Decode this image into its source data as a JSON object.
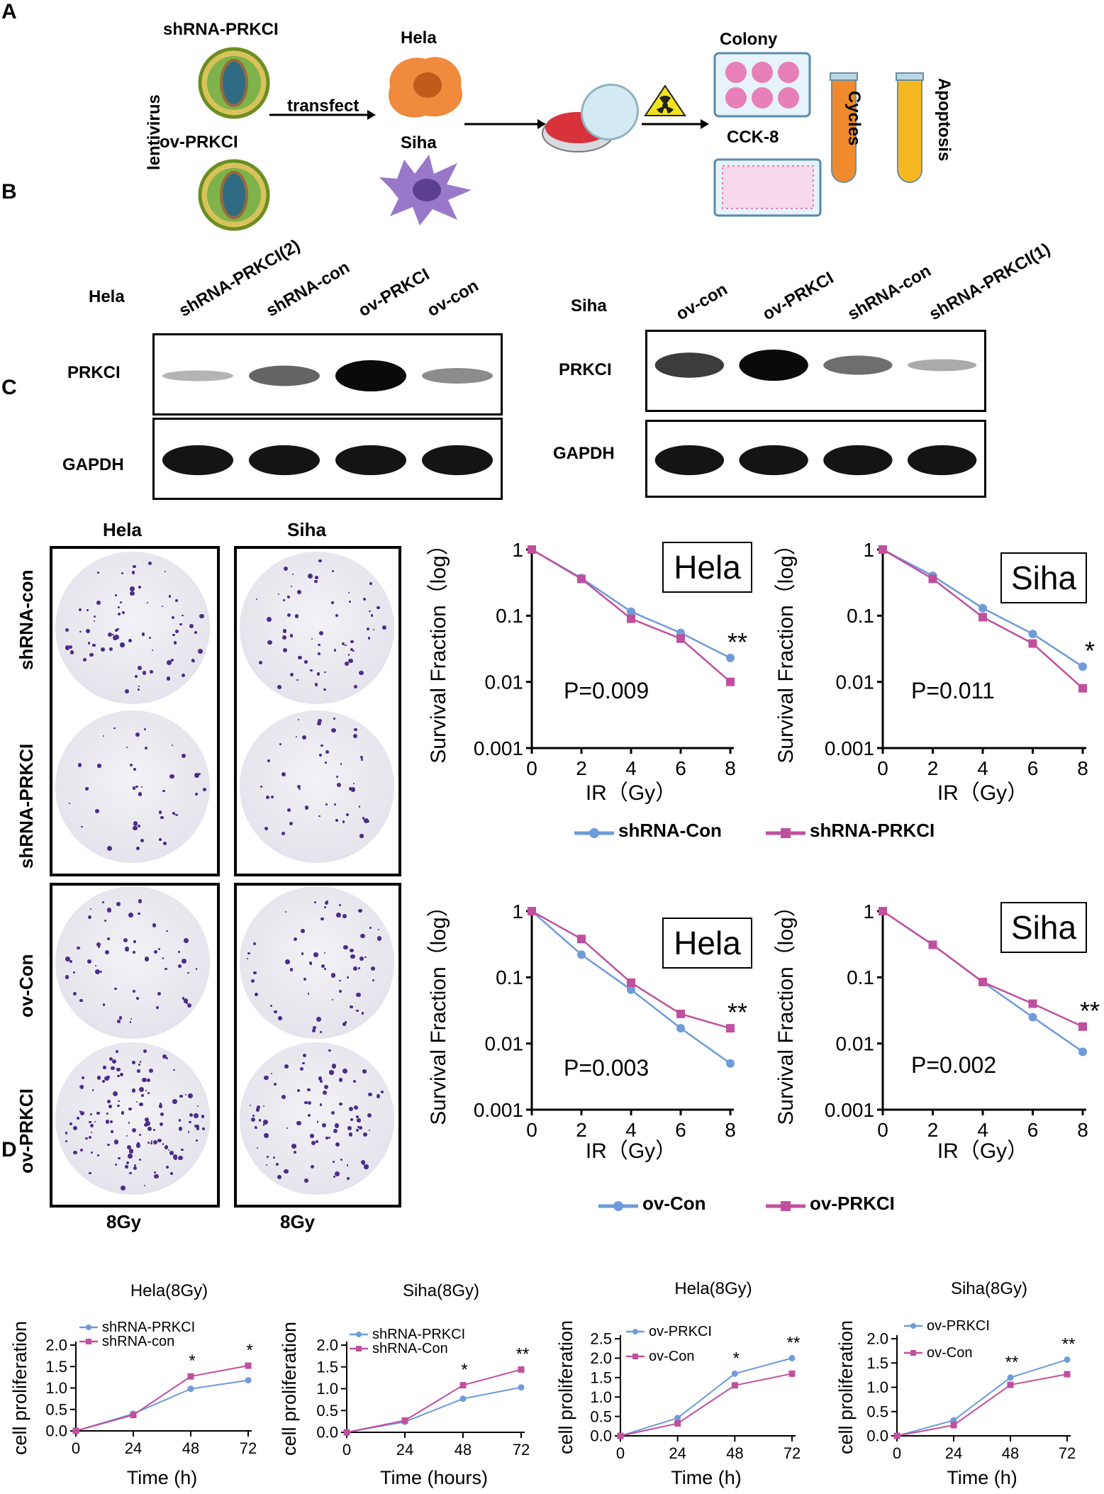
{
  "panels": {
    "a": "A",
    "b": "B",
    "c": "C",
    "d": "D"
  },
  "panelA": {
    "construct1": "shRNA-PRKCI",
    "construct2": "ov-PRKCI",
    "vector": "lentivirus",
    "action": "transfect",
    "cell1": "Hela",
    "cell2": "Siha",
    "assay_colony": "Colony",
    "assay_cck8": "CCK-8",
    "assay_cycles": "Cycles",
    "assay_apoptosis": "Apoptosis"
  },
  "panelB": {
    "hela": {
      "cell": "Hela",
      "lanes": [
        "shRNA-PRKCI(2)",
        "shRNA-con",
        "ov-PRKCI",
        "ov-con"
      ],
      "row1": "PRKCI",
      "row2": "GAPDH",
      "prkci_levels": [
        0.15,
        0.55,
        1.0,
        0.35
      ]
    },
    "siha": {
      "cell": "Siha",
      "lanes": [
        "ov-con",
        "ov-PRKCI",
        "shRNA-con",
        "shRNA-PRKCI(1)"
      ],
      "row1": "PRKCI",
      "row2": "GAPDH",
      "prkci_levels": [
        0.75,
        1.0,
        0.5,
        0.2
      ]
    }
  },
  "panelC": {
    "col1": "Hela",
    "col2": "Siha",
    "row1": "shRNA-con",
    "row2": "shRNA-PRKCI",
    "row3": "ov-Con",
    "row4": "ov-PRKCI",
    "dose1": "8Gy",
    "dose2": "8Gy",
    "legend_top": [
      "shRNA-Con",
      "shRNA-PRKCI"
    ],
    "legend_bottom": [
      "ov-Con",
      "ov-PRKCI"
    ]
  },
  "colors": {
    "blue": "#6f9bd8",
    "pink": "#c0509e"
  },
  "chart_data": [
    {
      "type": "line",
      "title": "Hela",
      "xlabel": "IR（Gy）",
      "ylabel": "Survival Fraction（log）",
      "x": [
        0,
        2,
        4,
        6,
        8
      ],
      "yscale": "log",
      "ylim": [
        0.001,
        1
      ],
      "yticks": [
        "0.001",
        "0.01",
        "0.1",
        "1"
      ],
      "series": [
        {
          "name": "shRNA-Con",
          "values": [
            1,
            0.37,
            0.115,
            0.055,
            0.023
          ]
        },
        {
          "name": "shRNA-PRKCI",
          "values": [
            1,
            0.36,
            0.09,
            0.045,
            0.01
          ]
        }
      ],
      "annotation": "P=0.009",
      "significance": "**"
    },
    {
      "type": "line",
      "title": "Siha",
      "xlabel": "IR（Gy）",
      "ylabel": "Survival Fraction（log）",
      "x": [
        0,
        2,
        4,
        6,
        8
      ],
      "yscale": "log",
      "ylim": [
        0.001,
        1
      ],
      "yticks": [
        "0.001",
        "0.01",
        "0.1",
        "1"
      ],
      "series": [
        {
          "name": "shRNA-Con",
          "values": [
            1,
            0.4,
            0.13,
            0.053,
            0.017
          ]
        },
        {
          "name": "shRNA-PRKCI",
          "values": [
            1,
            0.36,
            0.095,
            0.038,
            0.008
          ]
        }
      ],
      "annotation": "P=0.011",
      "significance": "*"
    },
    {
      "type": "line",
      "title": "Hela",
      "xlabel": "IR（Gy）",
      "ylabel": "Survival Fraction（log）",
      "x": [
        0,
        2,
        4,
        6,
        8
      ],
      "yscale": "log",
      "ylim": [
        0.001,
        1
      ],
      "yticks": [
        "0.001",
        "0.01",
        "0.1",
        "1"
      ],
      "series": [
        {
          "name": "ov-Con",
          "values": [
            1,
            0.22,
            0.065,
            0.017,
            0.005
          ]
        },
        {
          "name": "ov-PRKCI",
          "values": [
            1,
            0.38,
            0.083,
            0.028,
            0.017
          ]
        }
      ],
      "annotation": "P=0.003",
      "significance": "**"
    },
    {
      "type": "line",
      "title": "Siha",
      "xlabel": "IR（Gy）",
      "ylabel": "Survival Fraction（log）",
      "x": [
        0,
        2,
        4,
        6,
        8
      ],
      "yscale": "log",
      "ylim": [
        0.001,
        1
      ],
      "yticks": [
        "0.001",
        "0.01",
        "0.1",
        "1"
      ],
      "series": [
        {
          "name": "ov-Con",
          "values": [
            1,
            0.31,
            0.085,
            0.025,
            0.0075
          ]
        },
        {
          "name": "ov-PRKCI",
          "values": [
            1,
            0.31,
            0.085,
            0.04,
            0.018
          ]
        }
      ],
      "annotation": "P=0.002",
      "significance": "**"
    },
    {
      "type": "line",
      "title": "Hela(8Gy)",
      "xlabel": "Time (h)",
      "ylabel": "cell proliferation",
      "x": [
        0,
        24,
        48,
        72
      ],
      "ylim": [
        0,
        2.0
      ],
      "yticks": [
        "0.0",
        "0.5",
        "1.0",
        "1.5",
        "2.0"
      ],
      "series": [
        {
          "name": "shRNA-PRKCI",
          "values": [
            0.0,
            0.4,
            0.98,
            1.18
          ]
        },
        {
          "name": "shRNA-con",
          "values": [
            0.0,
            0.37,
            1.27,
            1.52
          ]
        }
      ],
      "significance": [
        "",
        "",
        "*",
        "*"
      ]
    },
    {
      "type": "line",
      "title": "Siha(8Gy)",
      "xlabel": "Time (hours)",
      "ylabel": "cell proliferation",
      "x": [
        0,
        24,
        48,
        72
      ],
      "ylim": [
        0,
        2.0
      ],
      "yticks": [
        "0.0",
        "0.5",
        "1.0",
        "1.5",
        "2.0"
      ],
      "series": [
        {
          "name": "shRNA-PRKCI",
          "values": [
            0.0,
            0.24,
            0.77,
            1.03
          ]
        },
        {
          "name": "shRNA-Con",
          "values": [
            0.0,
            0.27,
            1.08,
            1.44
          ]
        }
      ],
      "significance": [
        "",
        "",
        "*",
        "**"
      ]
    },
    {
      "type": "line",
      "title": "Hela(8Gy)",
      "xlabel": "Time (h)",
      "ylabel": "cell proliferation",
      "x": [
        0,
        24,
        48,
        72
      ],
      "ylim": [
        0,
        2.5
      ],
      "yticks": [
        "0.0",
        "0.5",
        "1.0",
        "1.5",
        "2.0",
        "2.5"
      ],
      "series": [
        {
          "name": "ov-PRKCI",
          "values": [
            0.0,
            0.46,
            1.6,
            2.0
          ]
        },
        {
          "name": "ov-Con",
          "values": [
            0.0,
            0.32,
            1.3,
            1.6
          ]
        }
      ],
      "significance": [
        "",
        "",
        "*",
        "**"
      ]
    },
    {
      "type": "line",
      "title": "Siha(8Gy)",
      "xlabel": "Time (h)",
      "ylabel": "cell proliferation",
      "x": [
        0,
        24,
        48,
        72
      ],
      "ylim": [
        0,
        2.0
      ],
      "yticks": [
        "0.0",
        "0.5",
        "1.0",
        "1.5",
        "2.0"
      ],
      "series": [
        {
          "name": "ov-PRKCI",
          "values": [
            0.0,
            0.32,
            1.2,
            1.57
          ]
        },
        {
          "name": "ov-Con",
          "values": [
            0.0,
            0.22,
            1.05,
            1.27
          ]
        }
      ],
      "significance": [
        "",
        "",
        "**",
        "**"
      ]
    }
  ]
}
